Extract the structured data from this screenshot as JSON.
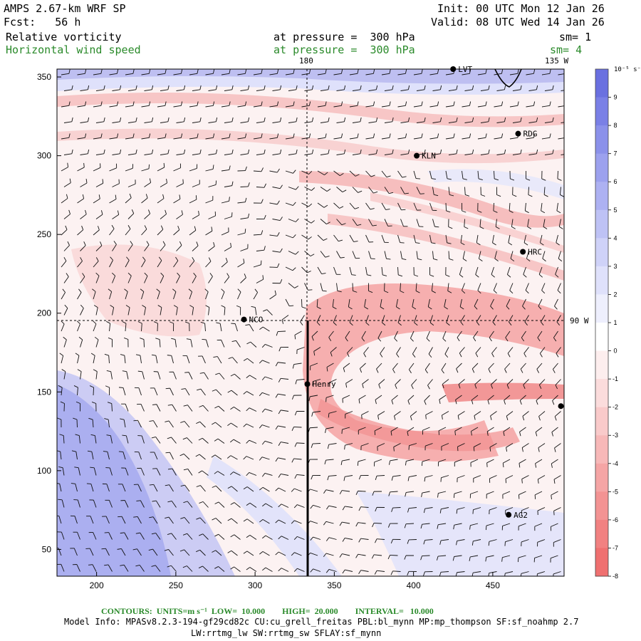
{
  "header": {
    "model": "AMPS 2.67-km WRF SP",
    "forecast": "Fcst:   56 h",
    "init": "Init: 00 UTC Mon 12 Jan 26",
    "valid": "Valid: 08 UTC Wed 14 Jan 26",
    "field1": "Relative vorticity",
    "field1_level": "at pressure =  300 hPa",
    "field1_sm": "sm= 1",
    "field2": "Horizontal wind speed",
    "field2_level": "at pressure =  300 hPa",
    "field2_sm": "sm= 4"
  },
  "map": {
    "lon_labels": [
      "180",
      "135 W",
      "90 W"
    ],
    "x_ticks": [
      "200",
      "250",
      "300",
      "350",
      "400",
      "450"
    ],
    "y_ticks": [
      "350",
      "300",
      "250",
      "200",
      "150",
      "100",
      "50"
    ],
    "stations": [
      {
        "name": "LVT",
        "x": 425,
        "y": 355
      },
      {
        "name": "RDG",
        "x": 466,
        "y": 314
      },
      {
        "name": "KLN",
        "x": 402,
        "y": 300
      },
      {
        "name": "HRC",
        "x": 469,
        "y": 239
      },
      {
        "name": "NCO",
        "x": 293,
        "y": 196
      },
      {
        "name": "Henry",
        "x": 333,
        "y": 155
      },
      {
        "name": "",
        "x": 493,
        "y": 141
      },
      {
        "name": "AG2",
        "x": 460,
        "y": 72
      }
    ],
    "cross_section": {
      "x": 334,
      "y_bottom": 34,
      "y_top": 196
    },
    "dashed_lines": {
      "meridian_x": 333,
      "parallel_y": 196
    }
  },
  "colorbar": {
    "units": "10⁻⁵ s⁻¹",
    "labels": [
      "9",
      "8",
      "7",
      "6",
      "5",
      "4",
      "3",
      "2",
      "1",
      "0",
      "-1",
      "-2",
      "-3",
      "-4",
      "-5",
      "-6",
      "-7",
      "-8"
    ],
    "colors": [
      "#6a70e0",
      "#7a80e6",
      "#8b91ea",
      "#9ca1ee",
      "#adb1f2",
      "#bec2f5",
      "#cfd2f8",
      "#dfe1fb",
      "#eeeffd",
      "#ffffff",
      "#fdeeee",
      "#fbdcdc",
      "#f9caca",
      "#f7b8b8",
      "#f5a5a5",
      "#f39393",
      "#f18181",
      "#ef7070"
    ]
  },
  "footer": {
    "contours": "CONTOURS:  UNITS=m s⁻¹  LOW=  10.000        HIGH=  20.000        INTERVAL=   10.000",
    "info1": "Model Info: MPASv8.2.3-194-gf29cd82c CU:cu_grell_freitas PBL:bl_mynn MP:mp_thompson SF:sf_noahmp 2.7",
    "info2": "LW:rrtmg_lw SW:rrtmg_sw SFLAY:sf_mynn"
  }
}
